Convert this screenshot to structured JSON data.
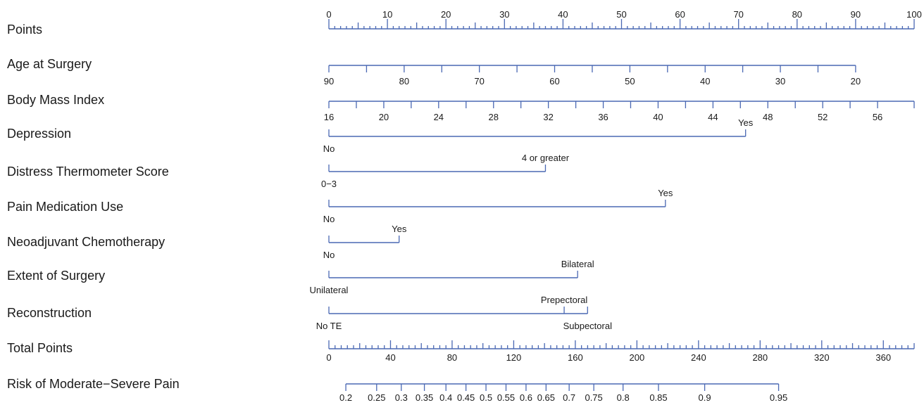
{
  "colors": {
    "axis": "#4a68b3",
    "text": "#1a1a1a",
    "background": "#ffffff"
  },
  "chart_data": {
    "type": "nomogram",
    "points_scale": {
      "min": 0,
      "max": 100
    },
    "rows": [
      {
        "name": "Points",
        "kind": "points_axis",
        "labels": [
          0,
          10,
          20,
          30,
          40,
          50,
          60,
          70,
          80,
          90,
          100
        ],
        "minor_step": 1,
        "mid_step": 5
      },
      {
        "name": "Age at Surgery",
        "kind": "continuous",
        "labels": [
          {
            "text": "90",
            "points": 0
          },
          {
            "text": "80",
            "points": 12.86
          },
          {
            "text": "70",
            "points": 25.71
          },
          {
            "text": "60",
            "points": 38.57
          },
          {
            "text": "50",
            "points": 51.43
          },
          {
            "text": "40",
            "points": 64.29
          },
          {
            "text": "30",
            "points": 77.14
          },
          {
            "text": "20",
            "points": 90
          }
        ],
        "tick_points": [
          0,
          6.43,
          12.86,
          19.29,
          25.71,
          32.14,
          38.57,
          45,
          51.43,
          57.86,
          64.29,
          70.71,
          77.14,
          83.57,
          90
        ]
      },
      {
        "name": "Body Mass Index",
        "kind": "continuous",
        "labels": [
          {
            "text": "16",
            "points": 0
          },
          {
            "text": "20",
            "points": 9.38
          },
          {
            "text": "24",
            "points": 18.75
          },
          {
            "text": "28",
            "points": 28.13
          },
          {
            "text": "32",
            "points": 37.5
          },
          {
            "text": "36",
            "points": 46.88
          },
          {
            "text": "40",
            "points": 56.25
          },
          {
            "text": "44",
            "points": 65.63
          },
          {
            "text": "48",
            "points": 75
          },
          {
            "text": "52",
            "points": 84.38
          },
          {
            "text": "56",
            "points": 93.75
          }
        ],
        "tick_points": [
          0,
          4.69,
          9.38,
          14.06,
          18.75,
          23.44,
          28.13,
          32.81,
          37.5,
          42.19,
          46.88,
          51.56,
          56.25,
          60.94,
          65.63,
          70.31,
          75,
          79.69,
          84.38,
          89.06,
          93.75,
          100
        ]
      },
      {
        "name": "Depression",
        "kind": "categorical",
        "levels": [
          {
            "text": "No",
            "points": 0,
            "side": "below"
          },
          {
            "text": "Yes",
            "points": 71.2,
            "side": "above"
          }
        ]
      },
      {
        "name": "Distress Thermometer Score",
        "kind": "categorical",
        "levels": [
          {
            "text": "0−3",
            "points": 0,
            "side": "below"
          },
          {
            "text": "4 or greater",
            "points": 37.0,
            "side": "above"
          }
        ]
      },
      {
        "name": "Pain Medication Use",
        "kind": "categorical",
        "levels": [
          {
            "text": "No",
            "points": 0,
            "side": "below"
          },
          {
            "text": "Yes",
            "points": 57.5,
            "side": "above"
          }
        ]
      },
      {
        "name": "Neoadjuvant Chemotherapy",
        "kind": "categorical",
        "levels": [
          {
            "text": "No",
            "points": 0,
            "side": "below"
          },
          {
            "text": "Yes",
            "points": 12.0,
            "side": "above"
          }
        ]
      },
      {
        "name": "Extent of Surgery",
        "kind": "categorical",
        "levels": [
          {
            "text": "Unilateral",
            "points": 0,
            "side": "below"
          },
          {
            "text": "Bilateral",
            "points": 42.5,
            "side": "above"
          }
        ]
      },
      {
        "name": "Reconstruction",
        "kind": "categorical",
        "levels": [
          {
            "text": "No TE",
            "points": 0,
            "side": "below"
          },
          {
            "text": "Prepectoral",
            "points": 40.2,
            "side": "above"
          },
          {
            "text": "Subpectoral",
            "points": 44.2,
            "side": "below"
          }
        ]
      },
      {
        "name": "Total Points",
        "kind": "total_axis",
        "labels": [
          0,
          40,
          80,
          120,
          160,
          200,
          240,
          280,
          320,
          360
        ],
        "range": [
          0,
          380
        ],
        "minor_step": 4,
        "mid_step": 20
      },
      {
        "name": "Risk of Moderate−Severe Pain",
        "kind": "risk_axis",
        "labels": [
          {
            "text": "0.2",
            "total": 11
          },
          {
            "text": "0.25",
            "total": 31
          },
          {
            "text": "0.3",
            "total": 47
          },
          {
            "text": "0.35",
            "total": 62
          },
          {
            "text": "0.4",
            "total": 76
          },
          {
            "text": "0.45",
            "total": 89
          },
          {
            "text": "0.5",
            "total": 102
          },
          {
            "text": "0.55",
            "total": 115
          },
          {
            "text": "0.6",
            "total": 128
          },
          {
            "text": "0.65",
            "total": 141
          },
          {
            "text": "0.7",
            "total": 156
          },
          {
            "text": "0.75",
            "total": 172
          },
          {
            "text": "0.8",
            "total": 191
          },
          {
            "text": "0.85",
            "total": 214
          },
          {
            "text": "0.9",
            "total": 244
          },
          {
            "text": "0.95",
            "total": 292
          }
        ]
      }
    ]
  }
}
